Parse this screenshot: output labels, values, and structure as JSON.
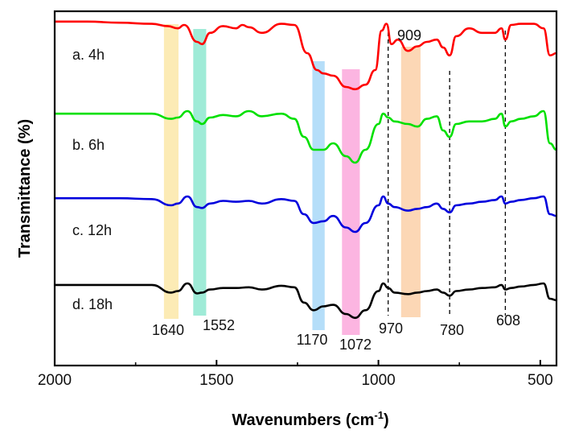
{
  "chart_data": {
    "type": "line",
    "xlabel": "Wavenumbers (cm",
    "xlabel_sup": "-1",
    "xlabel_close": ")",
    "ylabel": "Transmittance (%)",
    "xlim": [
      2000,
      450
    ],
    "x_ticks": [
      {
        "value": 2000,
        "label": "2000"
      },
      {
        "value": 1500,
        "label": "1500"
      },
      {
        "value": 1000,
        "label": "1000"
      },
      {
        "value": 500,
        "label": "500"
      }
    ],
    "series": [
      {
        "name": "a.  4h",
        "color": "#ff0000",
        "baseline": 0.0,
        "values": [
          [
            2000,
            0.02
          ],
          [
            1900,
            0.02
          ],
          [
            1800,
            0.03
          ],
          [
            1700,
            0.04
          ],
          [
            1650,
            0.06
          ],
          [
            1620,
            0.08
          ],
          [
            1600,
            0.05
          ],
          [
            1560,
            0.2
          ],
          [
            1545,
            0.22
          ],
          [
            1520,
            0.12
          ],
          [
            1480,
            0.06
          ],
          [
            1440,
            0.08
          ],
          [
            1420,
            0.05
          ],
          [
            1400,
            0.07
          ],
          [
            1360,
            0.12
          ],
          [
            1300,
            0.04
          ],
          [
            1260,
            0.05
          ],
          [
            1220,
            0.3
          ],
          [
            1190,
            0.45
          ],
          [
            1170,
            0.48
          ],
          [
            1140,
            0.5
          ],
          [
            1100,
            0.6
          ],
          [
            1072,
            0.62
          ],
          [
            1040,
            0.58
          ],
          [
            1010,
            0.45
          ],
          [
            990,
            0.1
          ],
          [
            975,
            0.04
          ],
          [
            960,
            0.22
          ],
          [
            940,
            0.18
          ],
          [
            909,
            0.28
          ],
          [
            880,
            0.24
          ],
          [
            850,
            0.2
          ],
          [
            820,
            0.18
          ],
          [
            800,
            0.25
          ],
          [
            780,
            0.32
          ],
          [
            760,
            0.15
          ],
          [
            720,
            0.08
          ],
          [
            680,
            0.12
          ],
          [
            640,
            0.12
          ],
          [
            620,
            0.08
          ],
          [
            608,
            0.18
          ],
          [
            590,
            0.05
          ],
          [
            560,
            0.04
          ],
          [
            520,
            0.04
          ],
          [
            490,
            0.08
          ],
          [
            470,
            0.32
          ],
          [
            450,
            0.3
          ]
        ]
      },
      {
        "name": "b. 6h",
        "color": "#00e000",
        "baseline": 0.0,
        "values": [
          [
            2000,
            0.02
          ],
          [
            1900,
            0.02
          ],
          [
            1800,
            0.02
          ],
          [
            1700,
            0.02
          ],
          [
            1640,
            0.06
          ],
          [
            1620,
            0.05
          ],
          [
            1590,
            0.0
          ],
          [
            1560,
            0.08
          ],
          [
            1545,
            0.1
          ],
          [
            1520,
            0.05
          ],
          [
            1480,
            0.03
          ],
          [
            1440,
            0.04
          ],
          [
            1400,
            0.0
          ],
          [
            1360,
            0.04
          ],
          [
            1300,
            0.02
          ],
          [
            1260,
            0.06
          ],
          [
            1230,
            0.2
          ],
          [
            1200,
            0.3
          ],
          [
            1170,
            0.3
          ],
          [
            1140,
            0.25
          ],
          [
            1100,
            0.35
          ],
          [
            1072,
            0.4
          ],
          [
            1040,
            0.3
          ],
          [
            1000,
            0.1
          ],
          [
            985,
            0.02
          ],
          [
            970,
            0.05
          ],
          [
            950,
            0.08
          ],
          [
            909,
            0.1
          ],
          [
            880,
            0.12
          ],
          [
            850,
            0.06
          ],
          [
            820,
            0.04
          ],
          [
            800,
            0.15
          ],
          [
            780,
            0.2
          ],
          [
            760,
            0.1
          ],
          [
            720,
            0.08
          ],
          [
            680,
            0.08
          ],
          [
            640,
            0.06
          ],
          [
            620,
            0.02
          ],
          [
            608,
            0.12
          ],
          [
            590,
            0.08
          ],
          [
            560,
            0.06
          ],
          [
            520,
            0.04
          ],
          [
            490,
            0.0
          ],
          [
            470,
            0.25
          ],
          [
            450,
            0.3
          ]
        ]
      },
      {
        "name": "c. 12h",
        "color": "#0000dd",
        "baseline": 0.0,
        "values": [
          [
            2000,
            0.02
          ],
          [
            1900,
            0.02
          ],
          [
            1800,
            0.02
          ],
          [
            1700,
            0.03
          ],
          [
            1640,
            0.1
          ],
          [
            1620,
            0.08
          ],
          [
            1590,
            0.0
          ],
          [
            1560,
            0.12
          ],
          [
            1545,
            0.13
          ],
          [
            1520,
            0.08
          ],
          [
            1480,
            0.05
          ],
          [
            1440,
            0.06
          ],
          [
            1400,
            0.05
          ],
          [
            1360,
            0.08
          ],
          [
            1300,
            0.03
          ],
          [
            1260,
            0.05
          ],
          [
            1230,
            0.2
          ],
          [
            1200,
            0.3
          ],
          [
            1170,
            0.28
          ],
          [
            1140,
            0.22
          ],
          [
            1100,
            0.35
          ],
          [
            1072,
            0.4
          ],
          [
            1040,
            0.3
          ],
          [
            1000,
            0.1
          ],
          [
            985,
            0.0
          ],
          [
            970,
            0.08
          ],
          [
            950,
            0.12
          ],
          [
            909,
            0.16
          ],
          [
            880,
            0.14
          ],
          [
            850,
            0.12
          ],
          [
            820,
            0.08
          ],
          [
            800,
            0.14
          ],
          [
            780,
            0.18
          ],
          [
            760,
            0.1
          ],
          [
            720,
            0.08
          ],
          [
            680,
            0.06
          ],
          [
            640,
            0.04
          ],
          [
            620,
            0.0
          ],
          [
            608,
            0.08
          ],
          [
            590,
            0.06
          ],
          [
            560,
            0.04
          ],
          [
            520,
            0.02
          ],
          [
            490,
            0.0
          ],
          [
            470,
            0.2
          ],
          [
            450,
            0.22
          ]
        ]
      },
      {
        "name": "d. 18h",
        "color": "#000000",
        "baseline": 0.0,
        "values": [
          [
            2000,
            0.02
          ],
          [
            1900,
            0.02
          ],
          [
            1800,
            0.02
          ],
          [
            1700,
            0.02
          ],
          [
            1640,
            0.12
          ],
          [
            1620,
            0.1
          ],
          [
            1590,
            0.0
          ],
          [
            1560,
            0.13
          ],
          [
            1545,
            0.12
          ],
          [
            1520,
            0.08
          ],
          [
            1480,
            0.06
          ],
          [
            1440,
            0.06
          ],
          [
            1400,
            0.05
          ],
          [
            1360,
            0.08
          ],
          [
            1300,
            0.03
          ],
          [
            1260,
            0.05
          ],
          [
            1230,
            0.25
          ],
          [
            1200,
            0.35
          ],
          [
            1170,
            0.3
          ],
          [
            1140,
            0.28
          ],
          [
            1100,
            0.4
          ],
          [
            1072,
            0.45
          ],
          [
            1040,
            0.35
          ],
          [
            1000,
            0.1
          ],
          [
            985,
            0.0
          ],
          [
            970,
            0.06
          ],
          [
            950,
            0.12
          ],
          [
            909,
            0.14
          ],
          [
            880,
            0.12
          ],
          [
            850,
            0.1
          ],
          [
            820,
            0.08
          ],
          [
            800,
            0.12
          ],
          [
            780,
            0.16
          ],
          [
            760,
            0.1
          ],
          [
            720,
            0.08
          ],
          [
            680,
            0.06
          ],
          [
            640,
            0.05
          ],
          [
            620,
            0.02
          ],
          [
            608,
            0.08
          ],
          [
            590,
            0.06
          ],
          [
            560,
            0.04
          ],
          [
            520,
            0.02
          ],
          [
            490,
            0.0
          ],
          [
            470,
            0.2
          ],
          [
            450,
            0.22
          ]
        ]
      }
    ],
    "bands": [
      {
        "label": "1640",
        "center": 1640,
        "width": 45,
        "color": "#fce8a8"
      },
      {
        "label": "1552",
        "center": 1552,
        "width": 40,
        "color": "#8ee8d0"
      },
      {
        "label": "1170",
        "center": 1185,
        "width": 38,
        "color": "#a8d8f8"
      },
      {
        "label": "1072",
        "center": 1085,
        "width": 55,
        "color": "#fca8dc"
      },
      {
        "label": "909",
        "center": 900,
        "width": 60,
        "color": "#fcd0a8"
      }
    ],
    "dashed_lines": [
      {
        "label": "970",
        "x": 970
      },
      {
        "label": "780",
        "x": 780
      },
      {
        "label": "608",
        "x": 608
      }
    ]
  }
}
